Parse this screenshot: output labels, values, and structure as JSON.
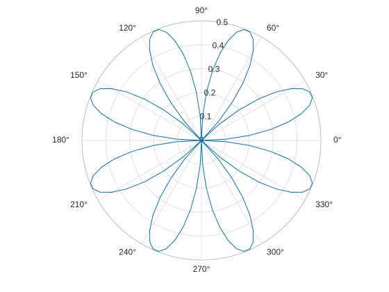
{
  "chart_data": {
    "type": "polar",
    "thetaticks": [
      {
        "value": 0,
        "label": "0°"
      },
      {
        "value": 30,
        "label": "30°"
      },
      {
        "value": 60,
        "label": "60°"
      },
      {
        "value": 90,
        "label": "90°"
      },
      {
        "value": 120,
        "label": "120°"
      },
      {
        "value": 150,
        "label": "150°"
      },
      {
        "value": 180,
        "label": "180°"
      },
      {
        "value": 210,
        "label": "210°"
      },
      {
        "value": 240,
        "label": "240°"
      },
      {
        "value": 270,
        "label": "270°"
      },
      {
        "value": 300,
        "label": "300°"
      },
      {
        "value": 330,
        "label": "330°"
      }
    ],
    "rlim": [
      0,
      0.5
    ],
    "rticks": [
      0,
      0.1,
      0.2,
      0.3,
      0.4,
      0.5
    ],
    "rtick_angle": 80,
    "grid": true,
    "series": [
      {
        "color": "#0072bd",
        "x": [
          0,
          3,
          6,
          9,
          12,
          15,
          18,
          21,
          24,
          27,
          30,
          33,
          36,
          39,
          42,
          45,
          48,
          51,
          54,
          57,
          60,
          63,
          66,
          69,
          72,
          75,
          78,
          81,
          84,
          87,
          90,
          93,
          96,
          99,
          102,
          105,
          108,
          111,
          114,
          117,
          120,
          123,
          126,
          129,
          132,
          135,
          138,
          141,
          144,
          147,
          150,
          153,
          156,
          159,
          162,
          165,
          168,
          171,
          174,
          177,
          180,
          183,
          186,
          189,
          192,
          195,
          198,
          201,
          204,
          207,
          210,
          213,
          216,
          219,
          222,
          225,
          228,
          231,
          234,
          237,
          240,
          243,
          246,
          249,
          252,
          255,
          258,
          261,
          264,
          267,
          270,
          273,
          276,
          279,
          282,
          285,
          288,
          291,
          294,
          297,
          300,
          303,
          306,
          309,
          312,
          315,
          318,
          321,
          324,
          327,
          330,
          333,
          336,
          339,
          342,
          345,
          348,
          351,
          354,
          357,
          360
        ],
        "values": [
          0,
          0.104,
          0.203,
          0.294,
          0.372,
          0.433,
          0.476,
          0.497,
          0.497,
          0.476,
          0.433,
          0.372,
          0.294,
          0.203,
          0.104,
          0,
          -0.104,
          -0.203,
          -0.294,
          -0.372,
          -0.433,
          -0.476,
          -0.497,
          -0.497,
          -0.476,
          -0.433,
          -0.372,
          -0.294,
          -0.203,
          -0.104,
          0,
          0.104,
          0.203,
          0.294,
          0.372,
          0.433,
          0.476,
          0.497,
          0.497,
          0.476,
          0.433,
          0.372,
          0.294,
          0.203,
          0.104,
          0,
          -0.104,
          -0.203,
          -0.294,
          -0.372,
          -0.433,
          -0.476,
          -0.497,
          -0.497,
          -0.476,
          -0.433,
          -0.372,
          -0.294,
          -0.203,
          -0.104,
          0,
          0.104,
          0.203,
          0.294,
          0.372,
          0.433,
          0.476,
          0.497,
          0.497,
          0.476,
          0.433,
          0.372,
          0.294,
          0.203,
          0.104,
          0,
          -0.104,
          -0.203,
          -0.294,
          -0.372,
          -0.433,
          -0.476,
          -0.497,
          -0.497,
          -0.476,
          -0.433,
          -0.372,
          -0.294,
          -0.203,
          -0.104,
          0,
          0.104,
          0.203,
          0.294,
          0.372,
          0.433,
          0.476,
          0.497,
          0.497,
          0.476,
          0.433,
          0.372,
          0.294,
          0.203,
          0.104,
          0,
          -0.104,
          -0.203,
          -0.294,
          -0.372,
          -0.433,
          -0.476,
          -0.497,
          -0.497,
          -0.476,
          -0.433,
          -0.372,
          -0.294,
          -0.203,
          -0.104,
          0
        ]
      }
    ]
  }
}
